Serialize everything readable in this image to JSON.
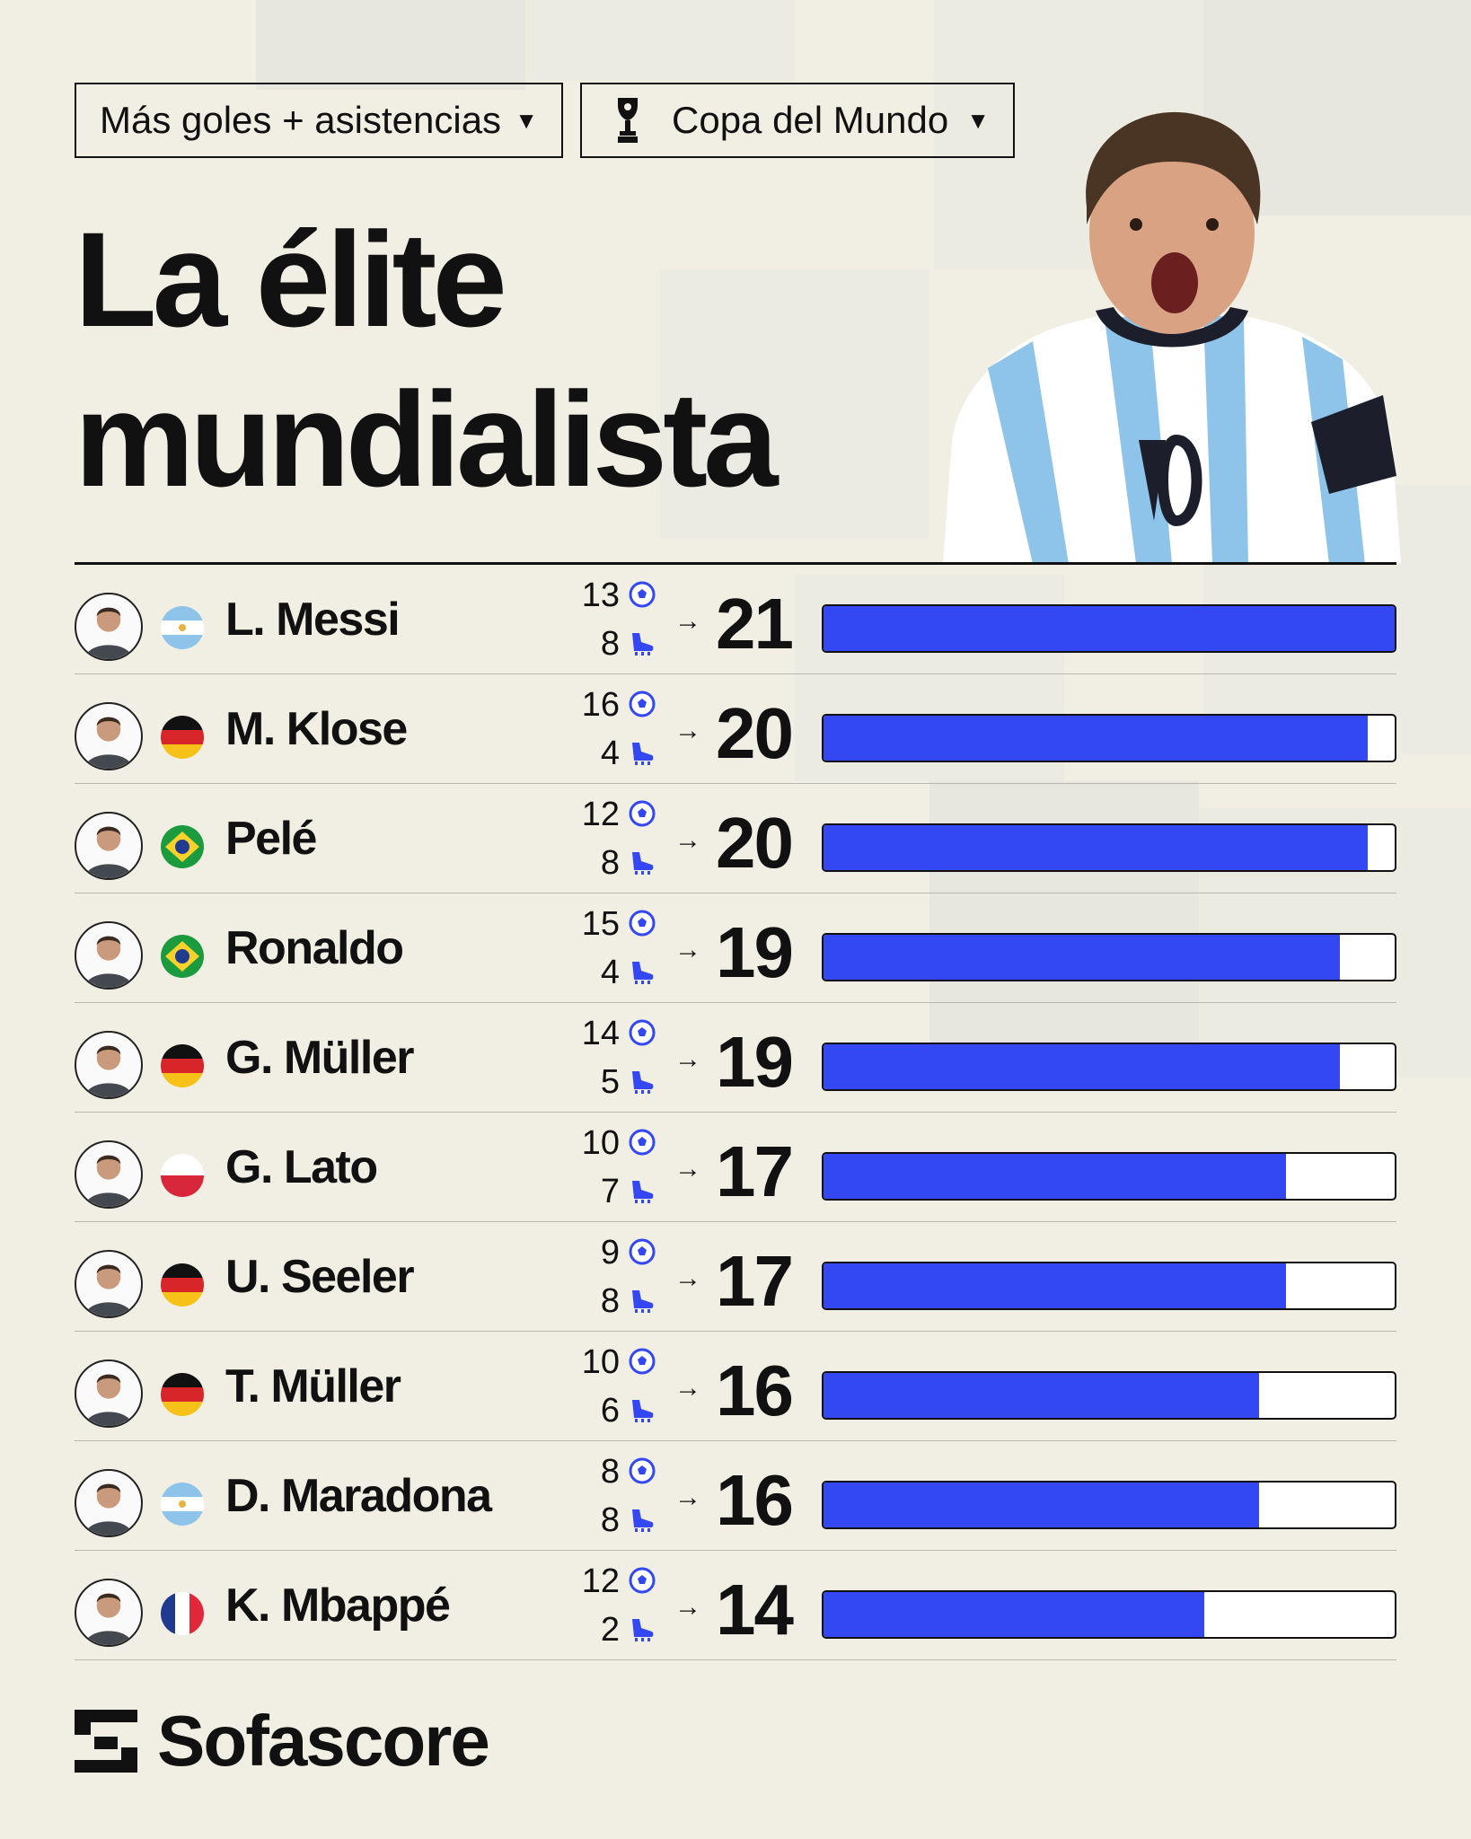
{
  "header": {
    "stat_filter": "Más goles + asistencias",
    "competition_filter": "Copa del Mundo",
    "title_line1": "La élite",
    "title_line2": "mundialista",
    "hero_icon": "player-celebrating-photo"
  },
  "colors": {
    "bar": "#3348f2",
    "background": "#f1efe3"
  },
  "chart_data": {
    "type": "bar",
    "orientation": "horizontal",
    "xlim": [
      0,
      21
    ],
    "categories": [
      "L. Messi",
      "M. Klose",
      "Pelé",
      "Ronaldo",
      "G. Müller",
      "G. Lato",
      "U. Seeler",
      "T. Müller",
      "D. Maradona",
      "K. Mbappé"
    ],
    "values": [
      21,
      20,
      20,
      19,
      19,
      17,
      17,
      16,
      16,
      14
    ],
    "rows": [
      {
        "name": "L. Messi",
        "flag": "argentina",
        "goals": "13",
        "assists": "8",
        "total": "21",
        "value": 21
      },
      {
        "name": "M. Klose",
        "flag": "germany",
        "goals": "16",
        "assists": "4",
        "total": "20",
        "value": 20
      },
      {
        "name": "Pelé",
        "flag": "brazil",
        "goals": "12",
        "assists": "8",
        "total": "20",
        "value": 20
      },
      {
        "name": "Ronaldo",
        "flag": "brazil",
        "goals": "15",
        "assists": "4",
        "total": "19",
        "value": 19
      },
      {
        "name": "G. Müller",
        "flag": "germany",
        "goals": "14",
        "assists": "5",
        "total": "19",
        "value": 19
      },
      {
        "name": "G. Lato",
        "flag": "poland",
        "goals": "10",
        "assists": "7",
        "total": "17",
        "value": 17
      },
      {
        "name": "U. Seeler",
        "flag": "germany",
        "goals": "9",
        "assists": "8",
        "total": "17",
        "value": 17
      },
      {
        "name": "T. Müller",
        "flag": "germany",
        "goals": "10",
        "assists": "6",
        "total": "16",
        "value": 16
      },
      {
        "name": "D. Maradona",
        "flag": "argentina",
        "goals": "8",
        "assists": "8",
        "total": "16",
        "value": 16
      },
      {
        "name": "K. Mbappé",
        "flag": "france",
        "goals": "12",
        "assists": "2",
        "total": "14",
        "value": 14
      }
    ]
  },
  "icons": {
    "goals": "soccer-ball-icon",
    "assists": "boot-icon",
    "arrow": "arrow-right-icon"
  },
  "footer": {
    "brand": "Sofascore"
  }
}
